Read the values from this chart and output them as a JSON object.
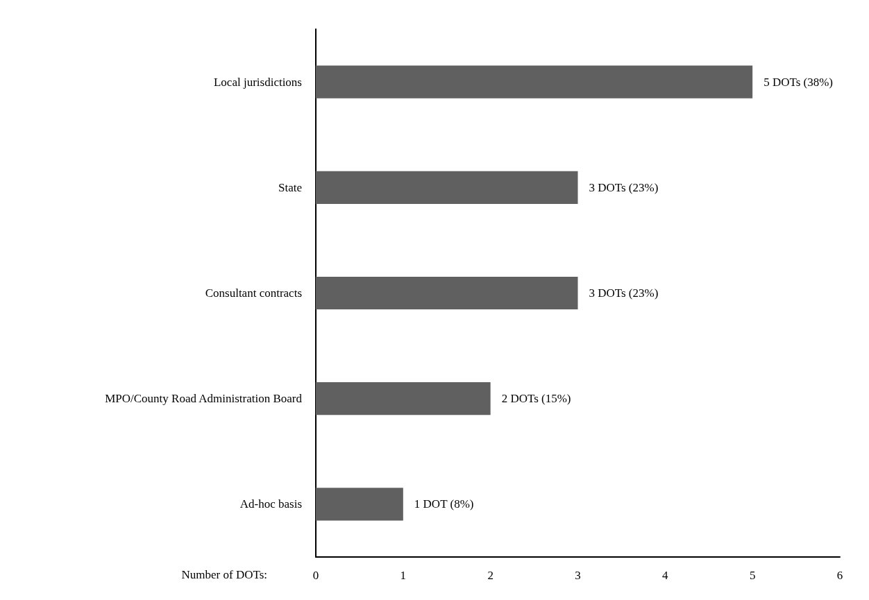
{
  "chart_data": {
    "type": "bar",
    "orientation": "horizontal",
    "xlabel": "Number of DOTs:",
    "categories": [
      "Local jurisdictions",
      "State",
      "Consultant contracts",
      "MPO/County Road Administration Board",
      "Ad-hoc basis"
    ],
    "values": [
      5,
      3,
      3,
      2,
      1
    ],
    "color": "#606060",
    "value_labels": [
      "5 DOTs (38%)",
      "3 DOTs (23%)",
      "3 DOTs (23%)",
      "2 DOTs (15%)",
      "1 DOT (8%)"
    ],
    "xlim": [
      0,
      6
    ],
    "xticks": [
      0,
      1,
      2,
      3,
      4,
      5,
      6
    ],
    "grid": false
  }
}
